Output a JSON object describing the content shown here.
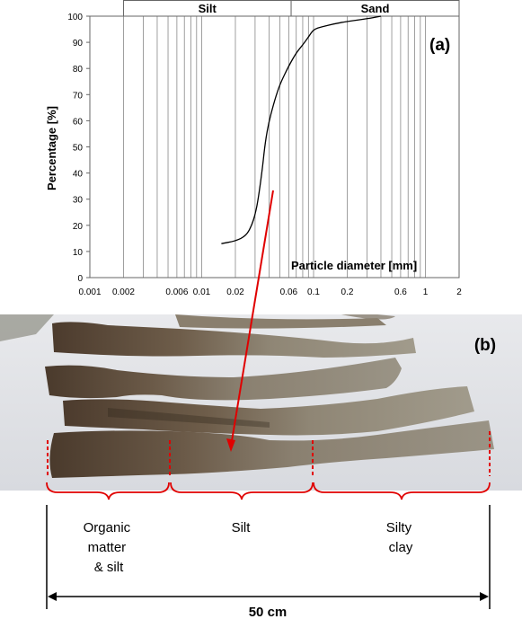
{
  "panel_a": {
    "label": "(a)",
    "ylabel": "Percentage [%]",
    "xlabel": "Particle diameter [mm]",
    "bands": [
      {
        "label": "Silt",
        "from": 0.002,
        "to": 0.063
      },
      {
        "label": "Sand",
        "from": 0.063,
        "to": 2
      }
    ],
    "yticks": [
      "0",
      "10",
      "20",
      "30",
      "40",
      "50",
      "60",
      "70",
      "80",
      "90",
      "100"
    ],
    "xticks": [
      {
        "value": 0.001,
        "label": "0.001"
      },
      {
        "value": 0.002,
        "label": "0.002"
      },
      {
        "value": 0.006,
        "label": "0.006"
      },
      {
        "value": 0.01,
        "label": "0.01"
      },
      {
        "value": 0.02,
        "label": "0.02"
      },
      {
        "value": 0.06,
        "label": "0.06"
      },
      {
        "value": 0.1,
        "label": "0.1"
      },
      {
        "value": 0.2,
        "label": "0.2"
      },
      {
        "value": 0.6,
        "label": "0.6"
      },
      {
        "value": 1,
        "label": "1"
      },
      {
        "value": 2,
        "label": "2"
      }
    ]
  },
  "chart_data": {
    "type": "line",
    "title": "",
    "xlabel": "Particle diameter [mm]",
    "ylabel": "Percentage [%]",
    "xscale": "log",
    "xlim": [
      0.001,
      2
    ],
    "ylim": [
      0,
      100
    ],
    "grid": "vertical gridlines",
    "series": [
      {
        "x": [
          0.015,
          0.02,
          0.025,
          0.028,
          0.03,
          0.032,
          0.035,
          0.037,
          0.04,
          0.045,
          0.05,
          0.06,
          0.07,
          0.08,
          0.09,
          0.1,
          0.12,
          0.15,
          0.2,
          0.3,
          0.4
        ],
        "y": [
          13,
          14,
          16,
          20,
          24,
          30,
          42,
          52,
          60,
          68,
          74,
          81,
          86,
          89,
          92,
          95,
          96,
          97,
          98,
          99,
          100
        ]
      }
    ]
  },
  "panel_b": {
    "label": "(b)",
    "sections": [
      "Organic matter & silt",
      "Silt",
      "Silty clay"
    ],
    "section_lines": [
      [
        "Organic",
        "matter",
        "& silt"
      ],
      [
        "Silt"
      ],
      [
        "Silty",
        "clay"
      ]
    ],
    "scale_label": "50 cm"
  },
  "colors": {
    "annotation": "#e00000",
    "curve": "#000000",
    "grid": "#888888"
  }
}
